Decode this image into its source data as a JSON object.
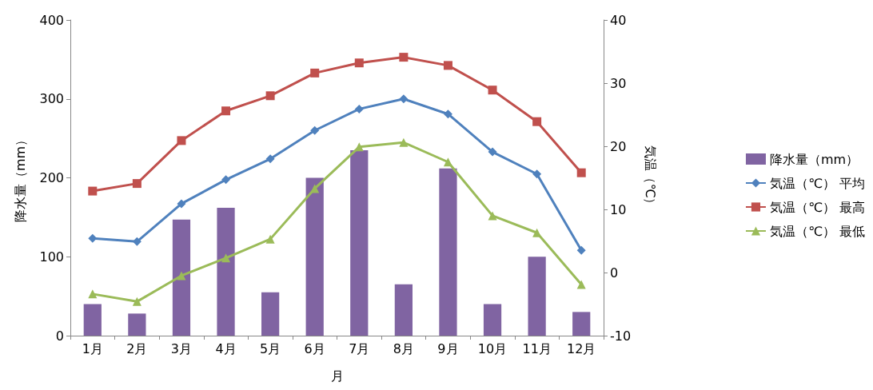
{
  "chart_data": {
    "type": "bar",
    "xlabel": "月",
    "ylabel": "降水量（mm）",
    "y2label": "気温（℃）",
    "categories": [
      "1月",
      "2月",
      "3月",
      "4月",
      "5月",
      "6月",
      "7月",
      "8月",
      "9月",
      "10月",
      "11月",
      "12月"
    ],
    "series": [
      {
        "name": "降水量（mm）",
        "color": "#8064a2",
        "values": [
          40,
          28,
          147,
          162,
          55,
          200,
          235,
          65,
          212,
          40,
          100,
          30
        ]
      },
      {
        "name": "気温（℃） 平均",
        "type": "line",
        "axis": "y2",
        "marker": "diamond",
        "color": "#4f81bd",
        "values": [
          5.4,
          4.9,
          10.9,
          14.7,
          18.0,
          22.5,
          25.9,
          27.5,
          25.1,
          19.1,
          15.6,
          3.5
        ]
      },
      {
        "name": "気温（℃） 最高",
        "type": "line",
        "axis": "y2",
        "marker": "square",
        "color": "#c0504d",
        "values": [
          12.9,
          14.1,
          20.9,
          25.6,
          28.0,
          31.6,
          33.2,
          34.1,
          32.8,
          28.9,
          23.9,
          15.8
        ]
      },
      {
        "name": "気温（℃） 最低",
        "type": "line",
        "axis": "y2",
        "marker": "triangle",
        "color": "#9bbb59",
        "values": [
          -3.4,
          -4.6,
          -0.5,
          2.3,
          5.3,
          13.3,
          19.9,
          20.6,
          17.5,
          9.0,
          6.3,
          -1.9
        ]
      }
    ],
    "ylim": [
      0,
      400
    ],
    "yticks": [
      0,
      100,
      200,
      300,
      400
    ],
    "y2lim": [
      -10,
      40
    ],
    "y2ticks": [
      -10,
      0,
      10,
      20,
      30,
      40
    ],
    "grid": false,
    "legend": "right",
    "line_style": "solid"
  }
}
